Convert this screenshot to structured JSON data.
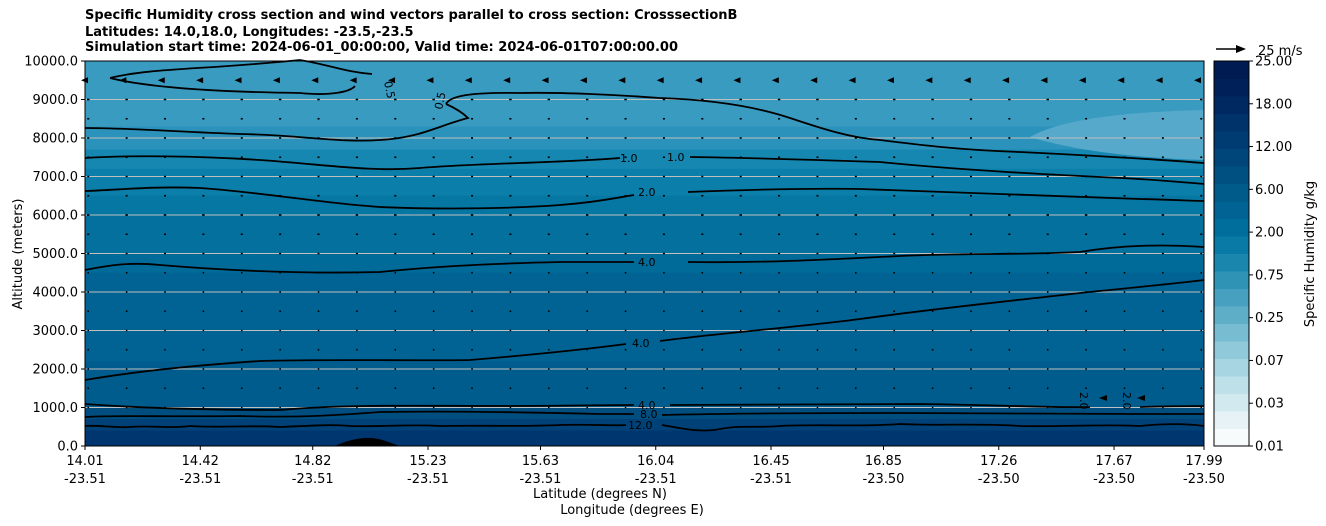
{
  "chart_data": {
    "type": "contour",
    "title_lines": [
      "Specific Humidity cross section and wind vectors parallel to cross section: CrosssectionB",
      "Latitudes: 14.0,18.0, Longitudes: -23.5,-23.5",
      "Simulation start time: 2024-06-01_00:00:00, Valid time: 2024-06-01T07:00:00.00"
    ],
    "ylabel": "Altitude (meters)",
    "xlabel_lat": "Latitude (degrees N)",
    "xlabel_lon": "Longitude (degrees E)",
    "ylim": [
      0,
      10000
    ],
    "y_ticks": [
      "0.0",
      "1000.0",
      "2000.0",
      "3000.0",
      "4000.0",
      "5000.0",
      "6000.0",
      "7000.0",
      "8000.0",
      "9000.0",
      "10000.0"
    ],
    "x_ticks_lat": [
      "14.01",
      "14.42",
      "14.82",
      "15.23",
      "15.63",
      "16.04",
      "16.45",
      "16.85",
      "17.26",
      "17.67",
      "17.99"
    ],
    "x_ticks_lon": [
      "-23.51",
      "-23.51",
      "-23.51",
      "-23.51",
      "-23.51",
      "-23.51",
      "-23.51",
      "-23.50",
      "-23.50",
      "-23.50",
      "-23.50"
    ],
    "colorbar": {
      "label": "Specific Humidity g/kg",
      "tick_labels": [
        "0.01",
        "0.03",
        "0.07",
        "0.25",
        "0.75",
        "2.00",
        "6.00",
        "12.00",
        "18.00",
        "25.00"
      ],
      "colors": [
        "#f7fbfc",
        "#e6f2f5",
        "#d2e9ef",
        "#bde0e9",
        "#a7d5e2",
        "#8fc9da",
        "#77bcd1",
        "#5eaec8",
        "#47a0bf",
        "#2f93b6",
        "#1a86ad",
        "#087aa5",
        "#006e9c",
        "#006393",
        "#005a8a",
        "#005082",
        "#00467a",
        "#003c72",
        "#00336a",
        "#002962",
        "#00205a",
        "#001a52"
      ]
    },
    "wind_reference": "25 m/s",
    "contour_labels": [
      "0.5",
      "0.5",
      "1.0",
      "1.0",
      "2.0",
      "4.0",
      "4.0",
      "4.0",
      "8.0",
      "12.0",
      "2.0",
      "2.0"
    ]
  }
}
